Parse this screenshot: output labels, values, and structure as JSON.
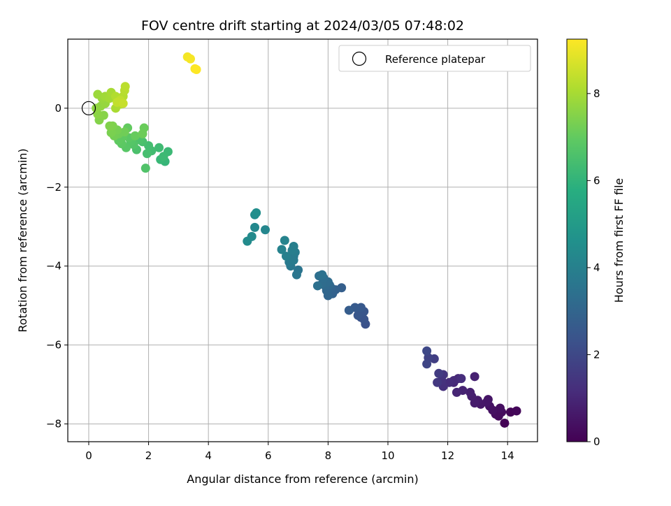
{
  "chart_data": {
    "type": "scatter",
    "title": "FOV centre drift starting at 2024/03/05 07:48:02",
    "xlabel": "Angular distance from reference (arcmin)",
    "ylabel": "Rotation from reference (arcmin)",
    "xlim": [
      -0.7,
      15.0
    ],
    "ylim": [
      -8.45,
      1.75
    ],
    "x_ticks": [
      0,
      2,
      4,
      6,
      8,
      10,
      12,
      14
    ],
    "y_ticks": [
      -8,
      -6,
      -4,
      -2,
      0
    ],
    "x_tick_labels": [
      "0",
      "2",
      "4",
      "6",
      "8",
      "10",
      "12",
      "14"
    ],
    "y_tick_labels": [
      "−8",
      "−6",
      "−4",
      "−2",
      "0"
    ],
    "grid": true,
    "legend": {
      "placement": "upper right",
      "entries": [
        "Reference platepar"
      ]
    },
    "reference_point": {
      "x": 0,
      "y": 0
    },
    "colorbar": {
      "label": "Hours from first FF file",
      "colormap": "viridis",
      "range": [
        0,
        9.25
      ],
      "ticks": [
        0,
        2,
        4,
        6,
        8
      ],
      "tick_labels": [
        "0",
        "2",
        "4",
        "6",
        "8"
      ]
    },
    "points": [
      [
        13.9,
        -7.98,
        0.05
      ],
      [
        14.1,
        -7.7,
        0.1
      ],
      [
        14.3,
        -7.67,
        0.15
      ],
      [
        13.7,
        -7.8,
        0.2
      ],
      [
        13.8,
        -7.7,
        0.25
      ],
      [
        13.6,
        -7.75,
        0.3
      ],
      [
        13.75,
        -7.6,
        0.35
      ],
      [
        13.5,
        -7.65,
        0.4
      ],
      [
        13.4,
        -7.55,
        0.45
      ],
      [
        13.35,
        -7.38,
        0.5
      ],
      [
        13.3,
        -7.45,
        0.55
      ],
      [
        13.1,
        -7.5,
        0.6
      ],
      [
        13.0,
        -7.4,
        0.65
      ],
      [
        12.9,
        -7.47,
        0.7
      ],
      [
        12.8,
        -7.3,
        0.75
      ],
      [
        12.75,
        -7.2,
        0.8
      ],
      [
        12.9,
        -6.8,
        0.85
      ],
      [
        12.5,
        -7.15,
        0.9
      ],
      [
        12.3,
        -7.2,
        0.95
      ],
      [
        12.2,
        -6.95,
        1.0
      ],
      [
        12.35,
        -6.85,
        1.05
      ],
      [
        12.2,
        -6.9,
        1.1
      ],
      [
        12.05,
        -6.95,
        1.15
      ],
      [
        12.45,
        -6.85,
        1.2
      ],
      [
        11.85,
        -7.05,
        1.25
      ],
      [
        11.8,
        -6.9,
        1.3
      ],
      [
        11.85,
        -6.75,
        1.4
      ],
      [
        11.65,
        -6.95,
        1.5
      ],
      [
        11.7,
        -6.72,
        1.6
      ],
      [
        11.55,
        -6.35,
        1.7
      ],
      [
        11.35,
        -6.32,
        1.8
      ],
      [
        11.3,
        -6.48,
        1.9
      ],
      [
        11.3,
        -6.15,
        2.0
      ],
      [
        9.25,
        -5.47,
        2.3
      ],
      [
        9.1,
        -5.3,
        2.35
      ],
      [
        9.2,
        -5.35,
        2.4
      ],
      [
        9.2,
        -5.15,
        2.45
      ],
      [
        9.0,
        -5.25,
        2.5
      ],
      [
        9.1,
        -5.05,
        2.55
      ],
      [
        8.9,
        -5.05,
        2.6
      ],
      [
        8.7,
        -5.12,
        2.7
      ],
      [
        8.45,
        -4.55,
        2.8
      ],
      [
        8.25,
        -4.6,
        2.85
      ],
      [
        8.15,
        -4.7,
        2.9
      ],
      [
        8.1,
        -4.55,
        2.95
      ],
      [
        8.0,
        -4.75,
        3.0
      ],
      [
        7.95,
        -4.62,
        3.05
      ],
      [
        8.05,
        -4.48,
        3.1
      ],
      [
        7.9,
        -4.5,
        3.15
      ],
      [
        8.0,
        -4.4,
        3.2
      ],
      [
        7.8,
        -4.45,
        3.25
      ],
      [
        7.85,
        -4.3,
        3.3
      ],
      [
        7.7,
        -4.25,
        3.35
      ],
      [
        7.65,
        -4.5,
        3.4
      ],
      [
        7.8,
        -4.22,
        3.45
      ],
      [
        7.0,
        -4.1,
        3.55
      ],
      [
        6.95,
        -4.22,
        3.6
      ],
      [
        6.85,
        -3.75,
        3.65
      ],
      [
        6.75,
        -4.0,
        3.7
      ],
      [
        6.7,
        -3.9,
        3.75
      ],
      [
        6.85,
        -3.85,
        3.8
      ],
      [
        6.9,
        -3.65,
        3.85
      ],
      [
        6.8,
        -3.6,
        3.9
      ],
      [
        6.85,
        -3.5,
        3.95
      ],
      [
        6.6,
        -3.75,
        4.0
      ],
      [
        6.45,
        -3.58,
        4.05
      ],
      [
        6.55,
        -3.35,
        4.1
      ],
      [
        5.9,
        -3.08,
        4.2
      ],
      [
        5.55,
        -3.02,
        4.3
      ],
      [
        5.45,
        -3.25,
        4.35
      ],
      [
        5.3,
        -3.37,
        4.4
      ],
      [
        5.55,
        -2.7,
        4.45
      ],
      [
        5.6,
        -2.65,
        4.5
      ],
      [
        2.55,
        -1.35,
        6.1
      ],
      [
        2.4,
        -1.3,
        6.15
      ],
      [
        2.65,
        -1.1,
        6.2
      ],
      [
        2.5,
        -1.22,
        6.25
      ],
      [
        2.35,
        -1.0,
        6.3
      ],
      [
        2.1,
        -1.08,
        6.35
      ],
      [
        2.0,
        -0.95,
        6.4
      ],
      [
        1.95,
        -1.15,
        6.45
      ],
      [
        1.8,
        -0.85,
        6.5
      ],
      [
        1.6,
        -1.05,
        6.55
      ],
      [
        1.7,
        -0.8,
        6.6
      ],
      [
        1.9,
        -1.52,
        6.65
      ],
      [
        1.5,
        -0.92,
        6.7
      ],
      [
        1.4,
        -0.85,
        6.75
      ],
      [
        1.25,
        -1.0,
        6.8
      ],
      [
        1.35,
        -0.75,
        6.85
      ],
      [
        1.1,
        -0.9,
        6.9
      ],
      [
        1.15,
        -0.72,
        6.95
      ],
      [
        1.0,
        -0.82,
        6.95
      ],
      [
        1.3,
        -0.5,
        7.0
      ],
      [
        1.55,
        -0.7,
        7.05
      ],
      [
        1.85,
        -0.5,
        7.1
      ],
      [
        1.8,
        -0.65,
        7.15
      ],
      [
        1.2,
        -0.6,
        7.2
      ],
      [
        1.0,
        -0.65,
        7.2
      ],
      [
        0.85,
        -0.7,
        7.25
      ],
      [
        0.95,
        -0.55,
        7.3
      ],
      [
        0.75,
        -0.62,
        7.35
      ],
      [
        0.8,
        -0.45,
        7.4
      ],
      [
        0.7,
        -0.45,
        7.45
      ],
      [
        0.35,
        -0.3,
        7.5
      ],
      [
        0.5,
        -0.18,
        7.55
      ],
      [
        0.3,
        -0.15,
        7.6
      ],
      [
        0.25,
        0.0,
        7.65
      ],
      [
        0.4,
        0.05,
        7.7
      ],
      [
        0.55,
        0.12,
        7.75
      ],
      [
        0.45,
        0.25,
        7.8
      ],
      [
        0.3,
        0.35,
        7.85
      ],
      [
        0.55,
        0.3,
        7.9
      ],
      [
        0.7,
        0.25,
        7.95
      ],
      [
        0.75,
        0.4,
        8.0
      ],
      [
        0.9,
        0.0,
        8.05
      ],
      [
        1.05,
        0.1,
        8.1
      ],
      [
        0.9,
        0.3,
        8.15
      ],
      [
        1.15,
        0.3,
        8.2
      ],
      [
        1.2,
        0.45,
        8.25
      ],
      [
        1.22,
        0.55,
        8.3
      ],
      [
        1.05,
        0.2,
        8.35
      ],
      [
        0.95,
        0.15,
        8.4
      ],
      [
        1.15,
        0.12,
        8.45
      ],
      [
        3.3,
        1.3,
        9.1
      ],
      [
        3.4,
        1.25,
        9.15
      ],
      [
        3.55,
        1.0,
        9.2
      ],
      [
        3.6,
        0.98,
        9.25
      ]
    ]
  }
}
